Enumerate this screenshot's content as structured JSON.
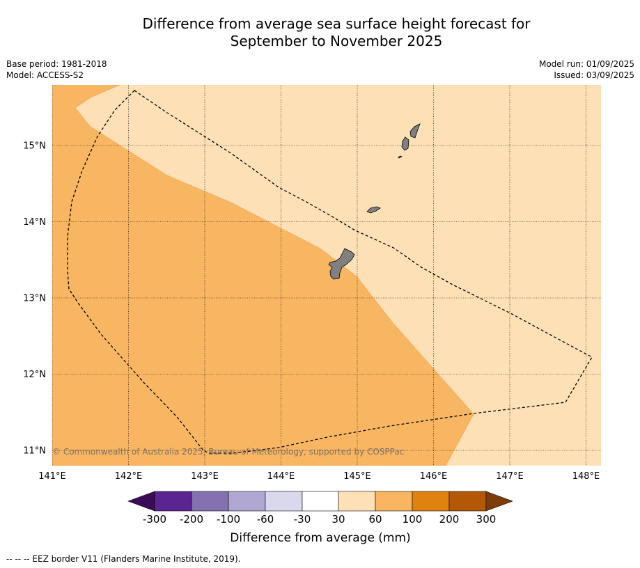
{
  "title": {
    "line1": "Difference from average sea surface height forecast for",
    "line2": "September to November 2025"
  },
  "meta": {
    "base_period": "Base period: 1981-2018",
    "model": "Model: ACCESS-S2",
    "model_run": "Model run: 01/09/2025",
    "issued": "Issued: 03/09/2025"
  },
  "map": {
    "longitude_labels": [
      "141°E",
      "142°E",
      "143°E",
      "144°E",
      "145°E",
      "146°E",
      "147°E",
      "148°E"
    ],
    "latitude_labels": [
      "15°N",
      "14°N",
      "13°N",
      "12°N",
      "11°N"
    ],
    "copyright": "© Commonwealth of Australia 2025, Bureau of Meteorology, supported by COSPPac",
    "colors": {
      "band_30_60": "#fde0b6",
      "band_60_100": "#f9b662",
      "land": "#808080",
      "gridline": "#000000"
    }
  },
  "colorbar": {
    "ticks": [
      "-300",
      "-200",
      "-100",
      "-60",
      "-30",
      "30",
      "60",
      "100",
      "200",
      "300"
    ],
    "colors": [
      "#3c0b57",
      "#5a2590",
      "#8371b0",
      "#b0a8d2",
      "#d9d8ec",
      "#ffffff",
      "#fde0b6",
      "#f9b662",
      "#e0820f",
      "#b35806",
      "#7e3c09"
    ],
    "label": "Difference from average (mm)"
  },
  "footer": {
    "legend": "--  --  -- EEZ border V11 (Flanders Marine Institute, 2019)."
  }
}
